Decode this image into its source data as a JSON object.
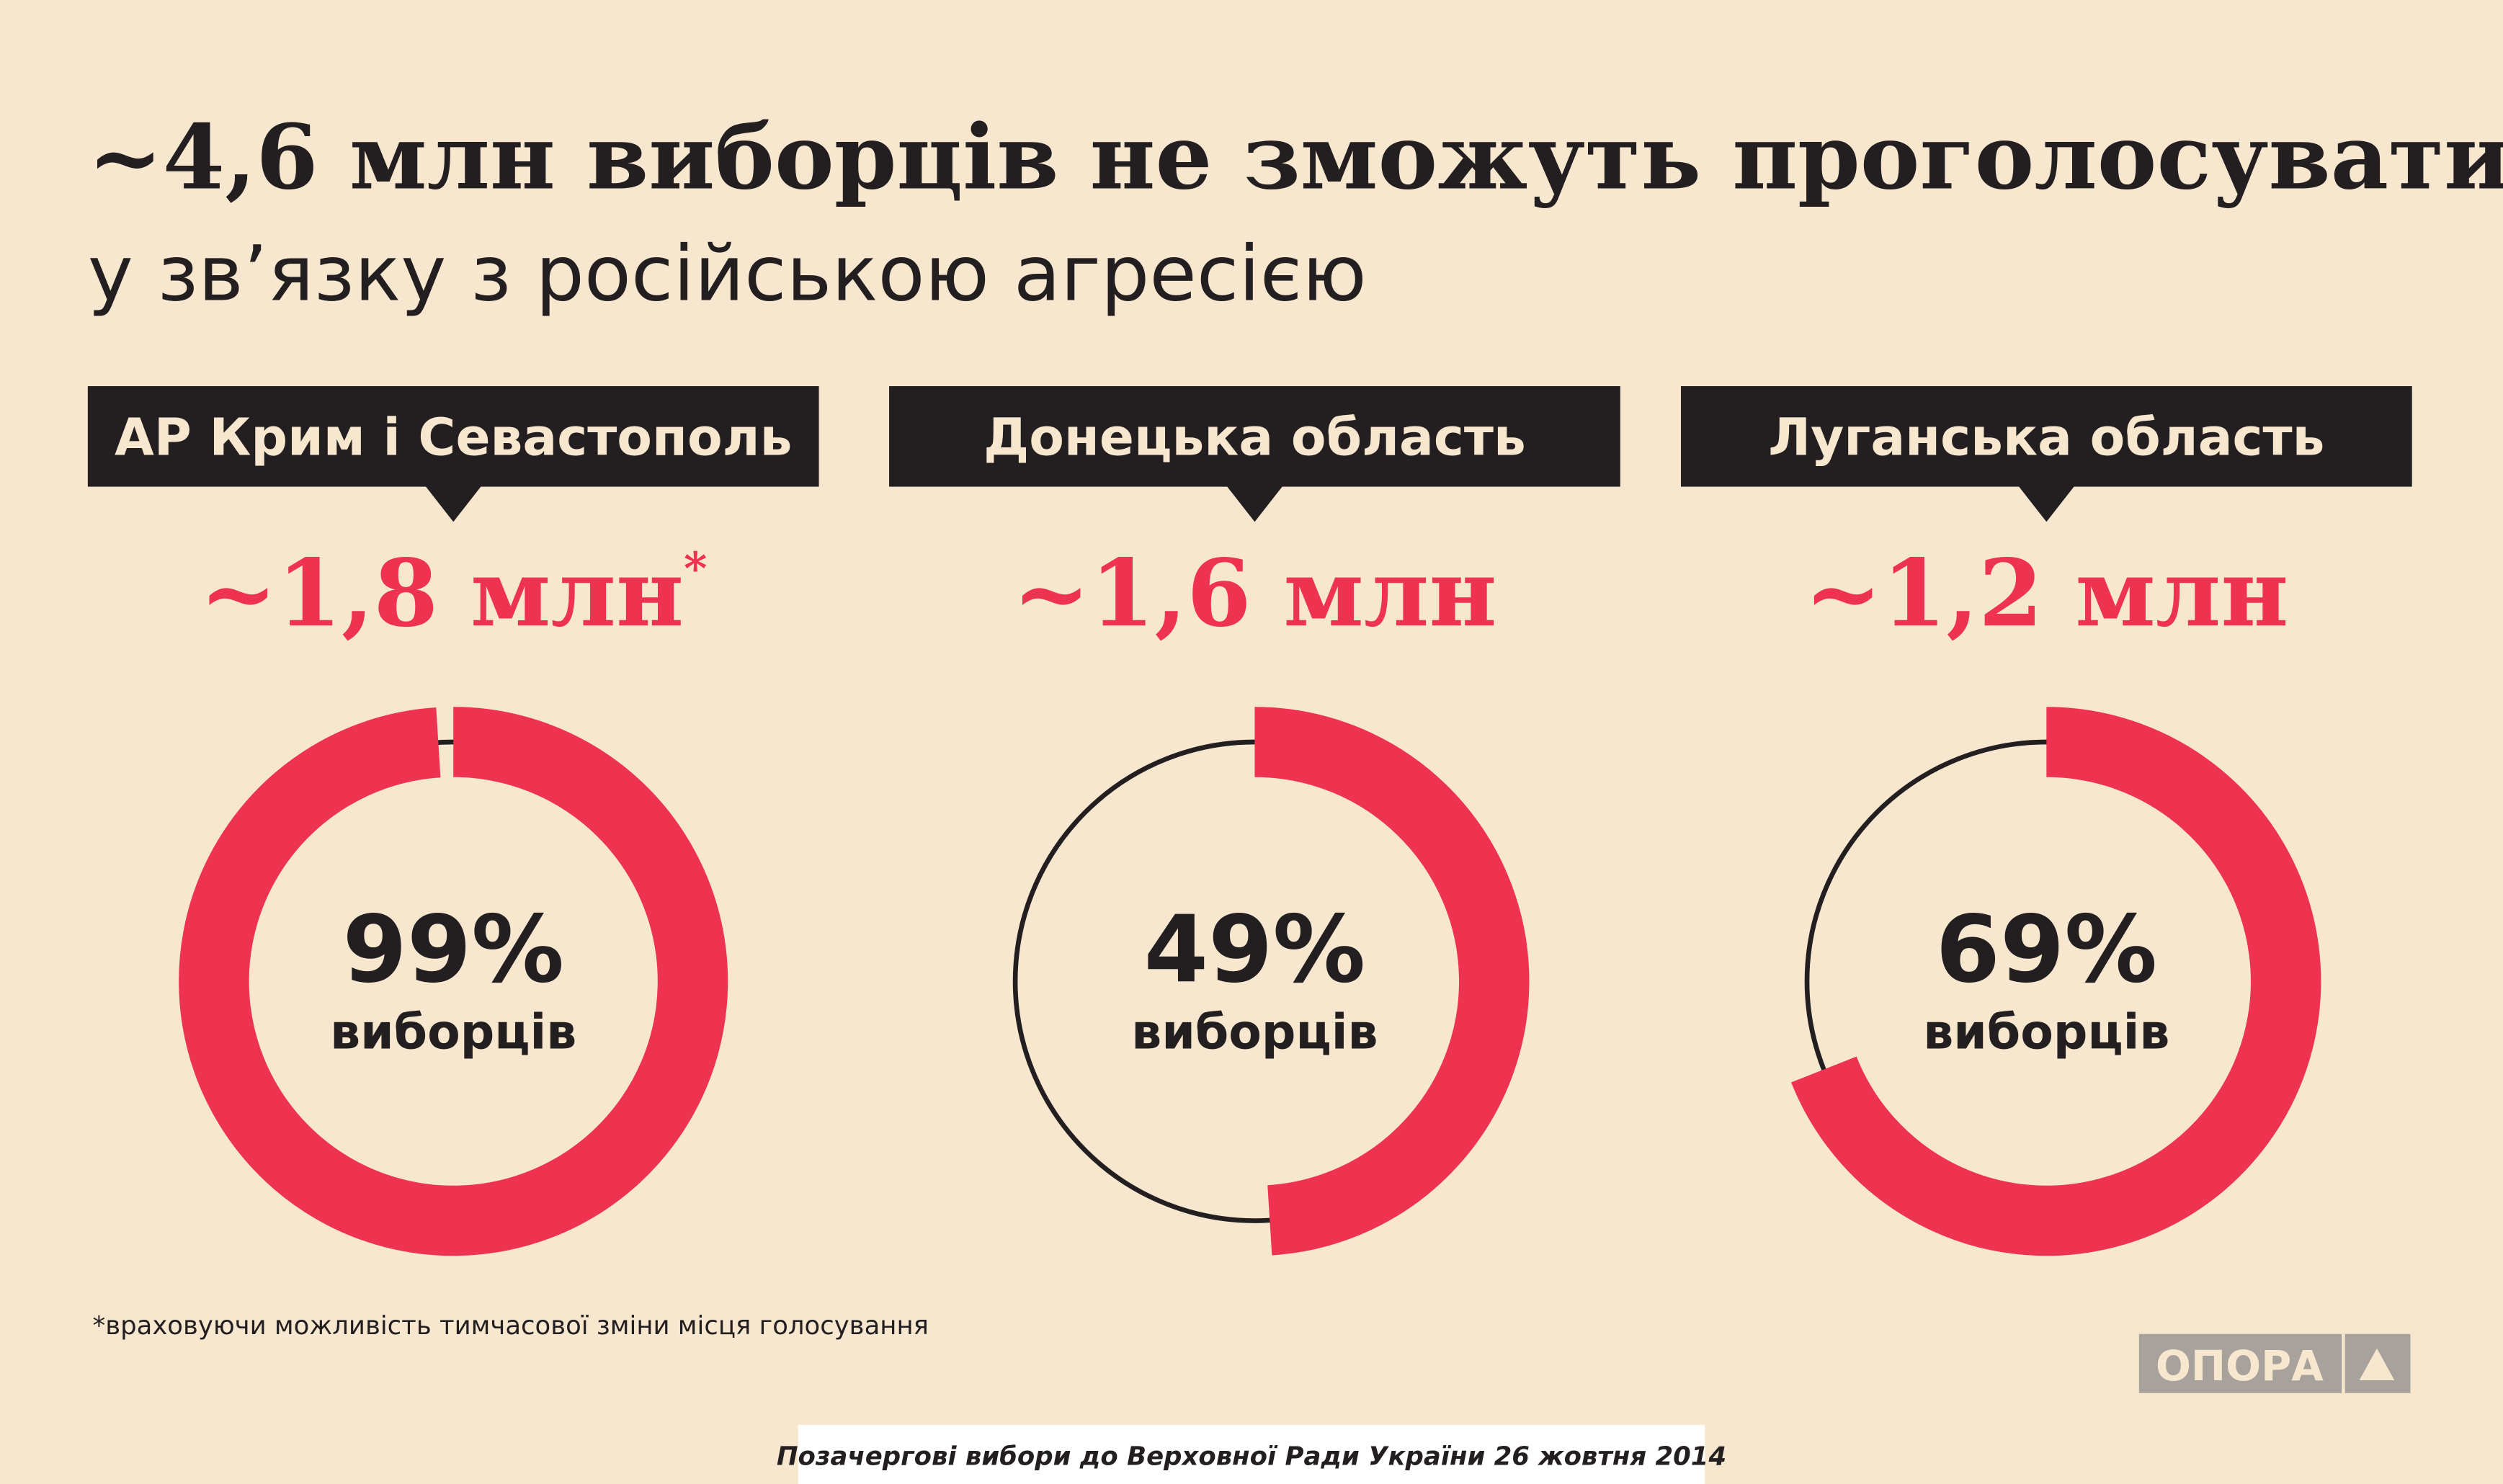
{
  "title": "~4,6 млн виборців не зможуть проголосувати",
  "subtitle": "у зв’язку з російською агресією",
  "chart_data": [
    {
      "type": "donut",
      "title": "АР Крим і Севастополь",
      "headline": "~1,8 млн",
      "note": "*",
      "values": [
        99
      ],
      "value_labels": [
        "99%"
      ],
      "label": "виборців",
      "color": "#ee3350"
    },
    {
      "type": "donut",
      "title": "Донецька область",
      "headline": "~1,6 млн",
      "values": [
        49
      ],
      "value_labels": [
        "49%"
      ],
      "label": "виборців",
      "color": "#ee3350"
    },
    {
      "type": "donut",
      "title": "Луганська область",
      "headline": "~1,2 млн",
      "values": [
        69
      ],
      "value_labels": [
        "69%"
      ],
      "label": "виборців",
      "color": "#ee3350"
    }
  ],
  "footnote": "*враховуючи можливість тимчасової зміни місця голосування",
  "logo": "ОПОРА",
  "source": "Позачергові вибори до Верховної Ради України 26 жовтня 2014"
}
